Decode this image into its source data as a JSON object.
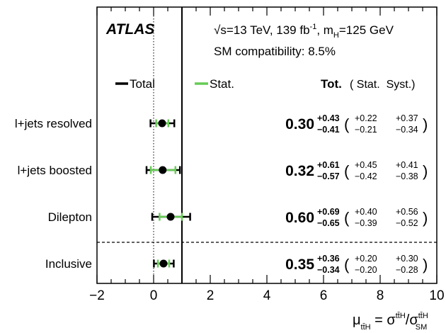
{
  "chart_data": {
    "type": "forest",
    "experiment": "ATLAS",
    "energy_text": "√s=13 TeV, 139 fb",
    "lumi_exponent": "-1",
    "mass_prefix": ", m",
    "mass_sub": "H",
    "mass_suffix": "=125 GeV",
    "compatibility": "SM compatibility: 8.5%",
    "legend": [
      {
        "label": "Total",
        "color": "#000000"
      },
      {
        "label": "Stat.",
        "color": "#66cc55"
      }
    ],
    "column_headers": {
      "tot": "Tot.",
      "stat_syst": "( Stat.  Syst.)"
    },
    "xlim": [
      -2,
      10
    ],
    "xticks": [
      -2,
      0,
      2,
      4,
      6,
      8,
      10
    ],
    "xlabel": {
      "mu": "μ",
      "mu_sub": "tt̄H",
      "eq": " = σ",
      "sig1_sup": "tt̄H",
      "slash": "/σ",
      "sig2_sup": "tt̄H",
      "sig2_sub": "SM"
    },
    "reference_line": 1,
    "zero_line": 0,
    "rows": [
      {
        "label": "l+jets resolved",
        "value": 0.3,
        "value_text": "0.30",
        "tot_up": 0.43,
        "tot_down": 0.41,
        "stat_up": 0.22,
        "stat_down": 0.21,
        "syst_up": 0.37,
        "syst_down": 0.34,
        "tot_up_text": "+0.43",
        "tot_down_text": "−0.41",
        "stat_up_text": "+0.22",
        "stat_down_text": "−0.21",
        "syst_up_text": "+0.37",
        "syst_down_text": "−0.34"
      },
      {
        "label": "l+jets boosted",
        "value": 0.32,
        "value_text": "0.32",
        "tot_up": 0.61,
        "tot_down": 0.57,
        "stat_up": 0.45,
        "stat_down": 0.42,
        "syst_up": 0.41,
        "syst_down": 0.38,
        "tot_up_text": "+0.61",
        "tot_down_text": "−0.57",
        "stat_up_text": "+0.45",
        "stat_down_text": "−0.42",
        "syst_up_text": "+0.41",
        "syst_down_text": "−0.38"
      },
      {
        "label": "Dilepton",
        "value": 0.6,
        "value_text": "0.60",
        "tot_up": 0.69,
        "tot_down": 0.65,
        "stat_up": 0.4,
        "stat_down": 0.39,
        "syst_up": 0.56,
        "syst_down": 0.52,
        "tot_up_text": "+0.69",
        "tot_down_text": "−0.65",
        "stat_up_text": "+0.40",
        "stat_down_text": "−0.39",
        "syst_up_text": "+0.56",
        "syst_down_text": "−0.52"
      },
      {
        "label": "Inclusive",
        "value": 0.35,
        "value_text": "0.35",
        "tot_up": 0.36,
        "tot_down": 0.34,
        "stat_up": 0.2,
        "stat_down": 0.2,
        "syst_up": 0.3,
        "syst_down": 0.28,
        "tot_up_text": "+0.36",
        "tot_down_text": "−0.34",
        "stat_up_text": "+0.20",
        "stat_down_text": "−0.20",
        "syst_up_text": "+0.30",
        "syst_down_text": "−0.28"
      }
    ]
  }
}
